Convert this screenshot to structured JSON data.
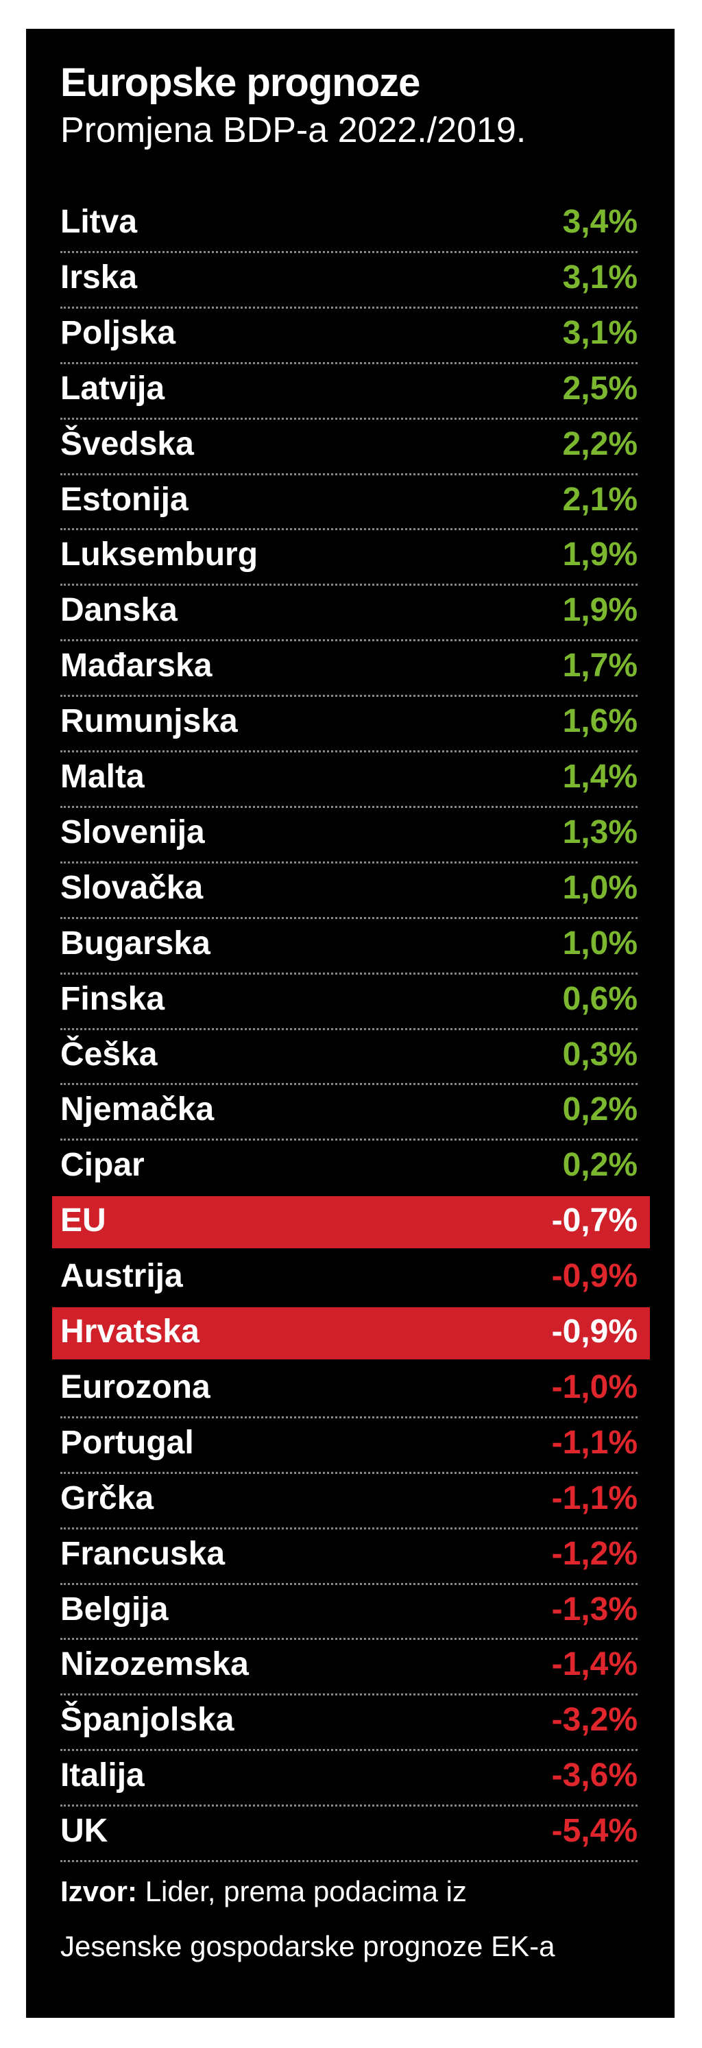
{
  "header": {
    "title": "Europske prognoze",
    "subtitle": "Promjena BDP-a 2022./2019."
  },
  "table": {
    "rows": [
      {
        "name": "Litva",
        "value": "3,4%",
        "color": "#7cb82f"
      },
      {
        "name": "Irska",
        "value": "3,1%",
        "color": "#7cb82f"
      },
      {
        "name": "Poljska",
        "value": "3,1%",
        "color": "#7cb82f"
      },
      {
        "name": "Latvija",
        "value": "2,5%",
        "color": "#7cb82f"
      },
      {
        "name": "Švedska",
        "value": "2,2%",
        "color": "#7cb82f"
      },
      {
        "name": "Estonija",
        "value": "2,1%",
        "color": "#7cb82f"
      },
      {
        "name": "Luksemburg",
        "value": "1,9%",
        "color": "#7cb82f"
      },
      {
        "name": "Danska",
        "value": "1,9%",
        "color": "#7cb82f"
      },
      {
        "name": "Mađarska",
        "value": "1,7%",
        "color": "#7cb82f"
      },
      {
        "name": "Rumunjska",
        "value": "1,6%",
        "color": "#7cb82f"
      },
      {
        "name": "Malta",
        "value": "1,4%",
        "color": "#7cb82f"
      },
      {
        "name": "Slovenija",
        "value": "1,3%",
        "color": "#7cb82f"
      },
      {
        "name": "Slovačka",
        "value": "1,0%",
        "color": "#7cb82f"
      },
      {
        "name": "Bugarska",
        "value": "1,0%",
        "color": "#7cb82f"
      },
      {
        "name": "Finska",
        "value": "0,6%",
        "color": "#7cb82f"
      },
      {
        "name": "Češka",
        "value": "0,3%",
        "color": "#7cb82f"
      },
      {
        "name": "Njemačka",
        "value": "0,2%",
        "color": "#7cb82f"
      },
      {
        "name": "Cipar",
        "value": "0,2%",
        "color": "#7cb82f"
      },
      {
        "name": "EU",
        "value": "-0,7%",
        "color": "#ffffff",
        "highlight": true
      },
      {
        "name": "Austrija",
        "value": "-0,9%",
        "color": "#e0262d"
      },
      {
        "name": "Hrvatska",
        "value": "-0,9%",
        "color": "#ffffff",
        "highlight": true
      },
      {
        "name": "Eurozona",
        "value": "-1,0%",
        "color": "#e0262d"
      },
      {
        "name": "Portugal",
        "value": "-1,1%",
        "color": "#e0262d"
      },
      {
        "name": "Grčka",
        "value": "-1,1%",
        "color": "#e0262d"
      },
      {
        "name": "Francuska",
        "value": "-1,2%",
        "color": "#e0262d"
      },
      {
        "name": "Belgija",
        "value": "-1,3%",
        "color": "#e0262d"
      },
      {
        "name": "Nizozemska",
        "value": "-1,4%",
        "color": "#e0262d"
      },
      {
        "name": "Španjolska",
        "value": "-3,2%",
        "color": "#e0262d"
      },
      {
        "name": "Italija",
        "value": "-3,6%",
        "color": "#e0262d"
      },
      {
        "name": "UK",
        "value": "-5,4%",
        "color": "#e0262d"
      }
    ]
  },
  "source": {
    "label": "Izvor:",
    "lines": [
      "Lider, prema podacima iz",
      "Jesenske gospodarske prognoze EK-a"
    ]
  }
}
